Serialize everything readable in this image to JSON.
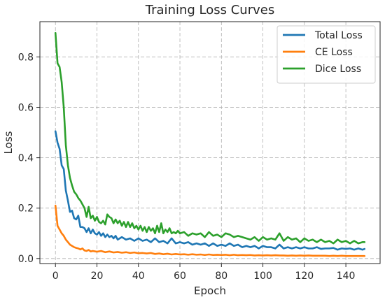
{
  "chart_data": {
    "type": "line",
    "title": "Training Loss Curves",
    "xlabel": "Epoch",
    "ylabel": "Loss",
    "xlim": [
      -7.5,
      156.5
    ],
    "ylim": [
      -0.02,
      0.94
    ],
    "xticks": [
      0,
      20,
      40,
      60,
      80,
      100,
      120,
      140
    ],
    "yticks": [
      0.0,
      0.2,
      0.4,
      0.6,
      0.8
    ],
    "grid": true,
    "legend_position": "top-right",
    "series": [
      {
        "name": "Total Loss",
        "color": "#1f77b4",
        "points": [
          [
            0,
            0.505
          ],
          [
            1,
            0.46
          ],
          [
            2,
            0.435
          ],
          [
            3,
            0.37
          ],
          [
            4,
            0.355
          ],
          [
            5,
            0.27
          ],
          [
            6,
            0.23
          ],
          [
            7,
            0.185
          ],
          [
            8,
            0.19
          ],
          [
            9,
            0.16
          ],
          [
            10,
            0.155
          ],
          [
            11,
            0.17
          ],
          [
            12,
            0.125
          ],
          [
            13,
            0.125
          ],
          [
            14,
            0.12
          ],
          [
            15,
            0.105
          ],
          [
            16,
            0.12
          ],
          [
            17,
            0.1
          ],
          [
            18,
            0.115
          ],
          [
            19,
            0.1
          ],
          [
            20,
            0.095
          ],
          [
            21,
            0.105
          ],
          [
            22,
            0.09
          ],
          [
            23,
            0.1
          ],
          [
            24,
            0.085
          ],
          [
            25,
            0.095
          ],
          [
            26,
            0.085
          ],
          [
            27,
            0.09
          ],
          [
            28,
            0.08
          ],
          [
            29,
            0.09
          ],
          [
            30,
            0.075
          ],
          [
            32,
            0.085
          ],
          [
            34,
            0.075
          ],
          [
            36,
            0.08
          ],
          [
            38,
            0.07
          ],
          [
            40,
            0.08
          ],
          [
            42,
            0.07
          ],
          [
            44,
            0.075
          ],
          [
            46,
            0.065
          ],
          [
            48,
            0.08
          ],
          [
            50,
            0.065
          ],
          [
            52,
            0.07
          ],
          [
            54,
            0.06
          ],
          [
            56,
            0.08
          ],
          [
            58,
            0.06
          ],
          [
            60,
            0.065
          ],
          [
            62,
            0.06
          ],
          [
            64,
            0.065
          ],
          [
            66,
            0.055
          ],
          [
            68,
            0.06
          ],
          [
            70,
            0.055
          ],
          [
            72,
            0.06
          ],
          [
            74,
            0.05
          ],
          [
            76,
            0.06
          ],
          [
            78,
            0.05
          ],
          [
            80,
            0.055
          ],
          [
            82,
            0.05
          ],
          [
            84,
            0.06
          ],
          [
            86,
            0.05
          ],
          [
            88,
            0.055
          ],
          [
            90,
            0.045
          ],
          [
            92,
            0.05
          ],
          [
            94,
            0.045
          ],
          [
            96,
            0.05
          ],
          [
            98,
            0.04
          ],
          [
            100,
            0.05
          ],
          [
            102,
            0.045
          ],
          [
            104,
            0.045
          ],
          [
            106,
            0.04
          ],
          [
            108,
            0.055
          ],
          [
            110,
            0.04
          ],
          [
            112,
            0.045
          ],
          [
            114,
            0.04
          ],
          [
            116,
            0.045
          ],
          [
            118,
            0.04
          ],
          [
            120,
            0.045
          ],
          [
            122,
            0.04
          ],
          [
            124,
            0.04
          ],
          [
            126,
            0.045
          ],
          [
            128,
            0.038
          ],
          [
            130,
            0.04
          ],
          [
            132,
            0.04
          ],
          [
            134,
            0.042
          ],
          [
            136,
            0.035
          ],
          [
            138,
            0.04
          ],
          [
            140,
            0.038
          ],
          [
            142,
            0.04
          ],
          [
            144,
            0.035
          ],
          [
            146,
            0.04
          ],
          [
            148,
            0.035
          ],
          [
            149,
            0.038
          ]
        ]
      },
      {
        "name": "CE Loss",
        "color": "#ff7f0e",
        "points": [
          [
            0,
            0.21
          ],
          [
            1,
            0.13
          ],
          [
            2,
            0.115
          ],
          [
            3,
            0.1
          ],
          [
            4,
            0.09
          ],
          [
            5,
            0.075
          ],
          [
            6,
            0.065
          ],
          [
            7,
            0.055
          ],
          [
            8,
            0.05
          ],
          [
            9,
            0.045
          ],
          [
            10,
            0.042
          ],
          [
            11,
            0.04
          ],
          [
            12,
            0.036
          ],
          [
            13,
            0.04
          ],
          [
            14,
            0.032
          ],
          [
            15,
            0.03
          ],
          [
            16,
            0.034
          ],
          [
            17,
            0.028
          ],
          [
            18,
            0.03
          ],
          [
            20,
            0.027
          ],
          [
            22,
            0.03
          ],
          [
            24,
            0.025
          ],
          [
            26,
            0.028
          ],
          [
            28,
            0.024
          ],
          [
            30,
            0.026
          ],
          [
            32,
            0.023
          ],
          [
            34,
            0.025
          ],
          [
            36,
            0.022
          ],
          [
            38,
            0.024
          ],
          [
            40,
            0.021
          ],
          [
            42,
            0.022
          ],
          [
            44,
            0.02
          ],
          [
            46,
            0.022
          ],
          [
            48,
            0.018
          ],
          [
            50,
            0.02
          ],
          [
            52,
            0.017
          ],
          [
            54,
            0.019
          ],
          [
            56,
            0.016
          ],
          [
            58,
            0.018
          ],
          [
            60,
            0.016
          ],
          [
            62,
            0.017
          ],
          [
            64,
            0.015
          ],
          [
            66,
            0.017
          ],
          [
            68,
            0.015
          ],
          [
            70,
            0.016
          ],
          [
            72,
            0.014
          ],
          [
            74,
            0.016
          ],
          [
            76,
            0.014
          ],
          [
            78,
            0.015
          ],
          [
            80,
            0.014
          ],
          [
            82,
            0.015
          ],
          [
            84,
            0.013
          ],
          [
            86,
            0.015
          ],
          [
            88,
            0.013
          ],
          [
            90,
            0.014
          ],
          [
            92,
            0.013
          ],
          [
            94,
            0.014
          ],
          [
            96,
            0.012
          ],
          [
            98,
            0.013
          ],
          [
            100,
            0.012
          ],
          [
            102,
            0.013
          ],
          [
            104,
            0.012
          ],
          [
            106,
            0.013
          ],
          [
            108,
            0.012
          ],
          [
            110,
            0.012
          ],
          [
            112,
            0.011
          ],
          [
            114,
            0.012
          ],
          [
            116,
            0.011
          ],
          [
            118,
            0.012
          ],
          [
            120,
            0.011
          ],
          [
            122,
            0.012
          ],
          [
            124,
            0.011
          ],
          [
            126,
            0.011
          ],
          [
            128,
            0.011
          ],
          [
            130,
            0.011
          ],
          [
            132,
            0.01
          ],
          [
            134,
            0.011
          ],
          [
            136,
            0.01
          ],
          [
            138,
            0.011
          ],
          [
            140,
            0.01
          ],
          [
            142,
            0.01
          ],
          [
            144,
            0.01
          ],
          [
            146,
            0.01
          ],
          [
            148,
            0.01
          ],
          [
            149,
            0.01
          ]
        ]
      },
      {
        "name": "Dice Loss",
        "color": "#2ca02c",
        "points": [
          [
            0,
            0.895
          ],
          [
            1,
            0.775
          ],
          [
            2,
            0.76
          ],
          [
            3,
            0.7
          ],
          [
            4,
            0.6
          ],
          [
            5,
            0.45
          ],
          [
            6,
            0.37
          ],
          [
            7,
            0.32
          ],
          [
            8,
            0.29
          ],
          [
            9,
            0.265
          ],
          [
            10,
            0.255
          ],
          [
            11,
            0.24
          ],
          [
            12,
            0.23
          ],
          [
            13,
            0.215
          ],
          [
            14,
            0.2
          ],
          [
            15,
            0.165
          ],
          [
            16,
            0.205
          ],
          [
            17,
            0.16
          ],
          [
            18,
            0.17
          ],
          [
            19,
            0.15
          ],
          [
            20,
            0.165
          ],
          [
            21,
            0.145
          ],
          [
            22,
            0.14
          ],
          [
            23,
            0.15
          ],
          [
            24,
            0.135
          ],
          [
            25,
            0.175
          ],
          [
            26,
            0.165
          ],
          [
            27,
            0.16
          ],
          [
            28,
            0.14
          ],
          [
            29,
            0.155
          ],
          [
            30,
            0.14
          ],
          [
            31,
            0.15
          ],
          [
            32,
            0.13
          ],
          [
            33,
            0.145
          ],
          [
            34,
            0.125
          ],
          [
            35,
            0.145
          ],
          [
            36,
            0.125
          ],
          [
            37,
            0.14
          ],
          [
            38,
            0.12
          ],
          [
            39,
            0.13
          ],
          [
            40,
            0.115
          ],
          [
            41,
            0.13
          ],
          [
            42,
            0.11
          ],
          [
            43,
            0.125
          ],
          [
            44,
            0.105
          ],
          [
            45,
            0.125
          ],
          [
            46,
            0.11
          ],
          [
            47,
            0.12
          ],
          [
            48,
            0.1
          ],
          [
            49,
            0.13
          ],
          [
            50,
            0.105
          ],
          [
            51,
            0.14
          ],
          [
            52,
            0.1
          ],
          [
            53,
            0.115
          ],
          [
            54,
            0.105
          ],
          [
            55,
            0.12
          ],
          [
            56,
            0.1
          ],
          [
            57,
            0.105
          ],
          [
            58,
            0.1
          ],
          [
            59,
            0.11
          ],
          [
            60,
            0.1
          ],
          [
            62,
            0.105
          ],
          [
            64,
            0.09
          ],
          [
            66,
            0.1
          ],
          [
            68,
            0.095
          ],
          [
            70,
            0.1
          ],
          [
            72,
            0.085
          ],
          [
            74,
            0.105
          ],
          [
            76,
            0.09
          ],
          [
            78,
            0.095
          ],
          [
            80,
            0.085
          ],
          [
            82,
            0.1
          ],
          [
            84,
            0.095
          ],
          [
            86,
            0.085
          ],
          [
            88,
            0.09
          ],
          [
            90,
            0.085
          ],
          [
            92,
            0.08
          ],
          [
            94,
            0.075
          ],
          [
            96,
            0.085
          ],
          [
            98,
            0.07
          ],
          [
            100,
            0.085
          ],
          [
            102,
            0.075
          ],
          [
            104,
            0.08
          ],
          [
            106,
            0.075
          ],
          [
            108,
            0.1
          ],
          [
            110,
            0.07
          ],
          [
            112,
            0.085
          ],
          [
            114,
            0.075
          ],
          [
            116,
            0.08
          ],
          [
            118,
            0.065
          ],
          [
            120,
            0.08
          ],
          [
            122,
            0.07
          ],
          [
            124,
            0.075
          ],
          [
            126,
            0.065
          ],
          [
            128,
            0.075
          ],
          [
            130,
            0.065
          ],
          [
            132,
            0.07
          ],
          [
            134,
            0.06
          ],
          [
            136,
            0.075
          ],
          [
            138,
            0.065
          ],
          [
            140,
            0.07
          ],
          [
            142,
            0.06
          ],
          [
            144,
            0.07
          ],
          [
            146,
            0.06
          ],
          [
            148,
            0.065
          ],
          [
            149,
            0.065
          ]
        ]
      }
    ]
  }
}
